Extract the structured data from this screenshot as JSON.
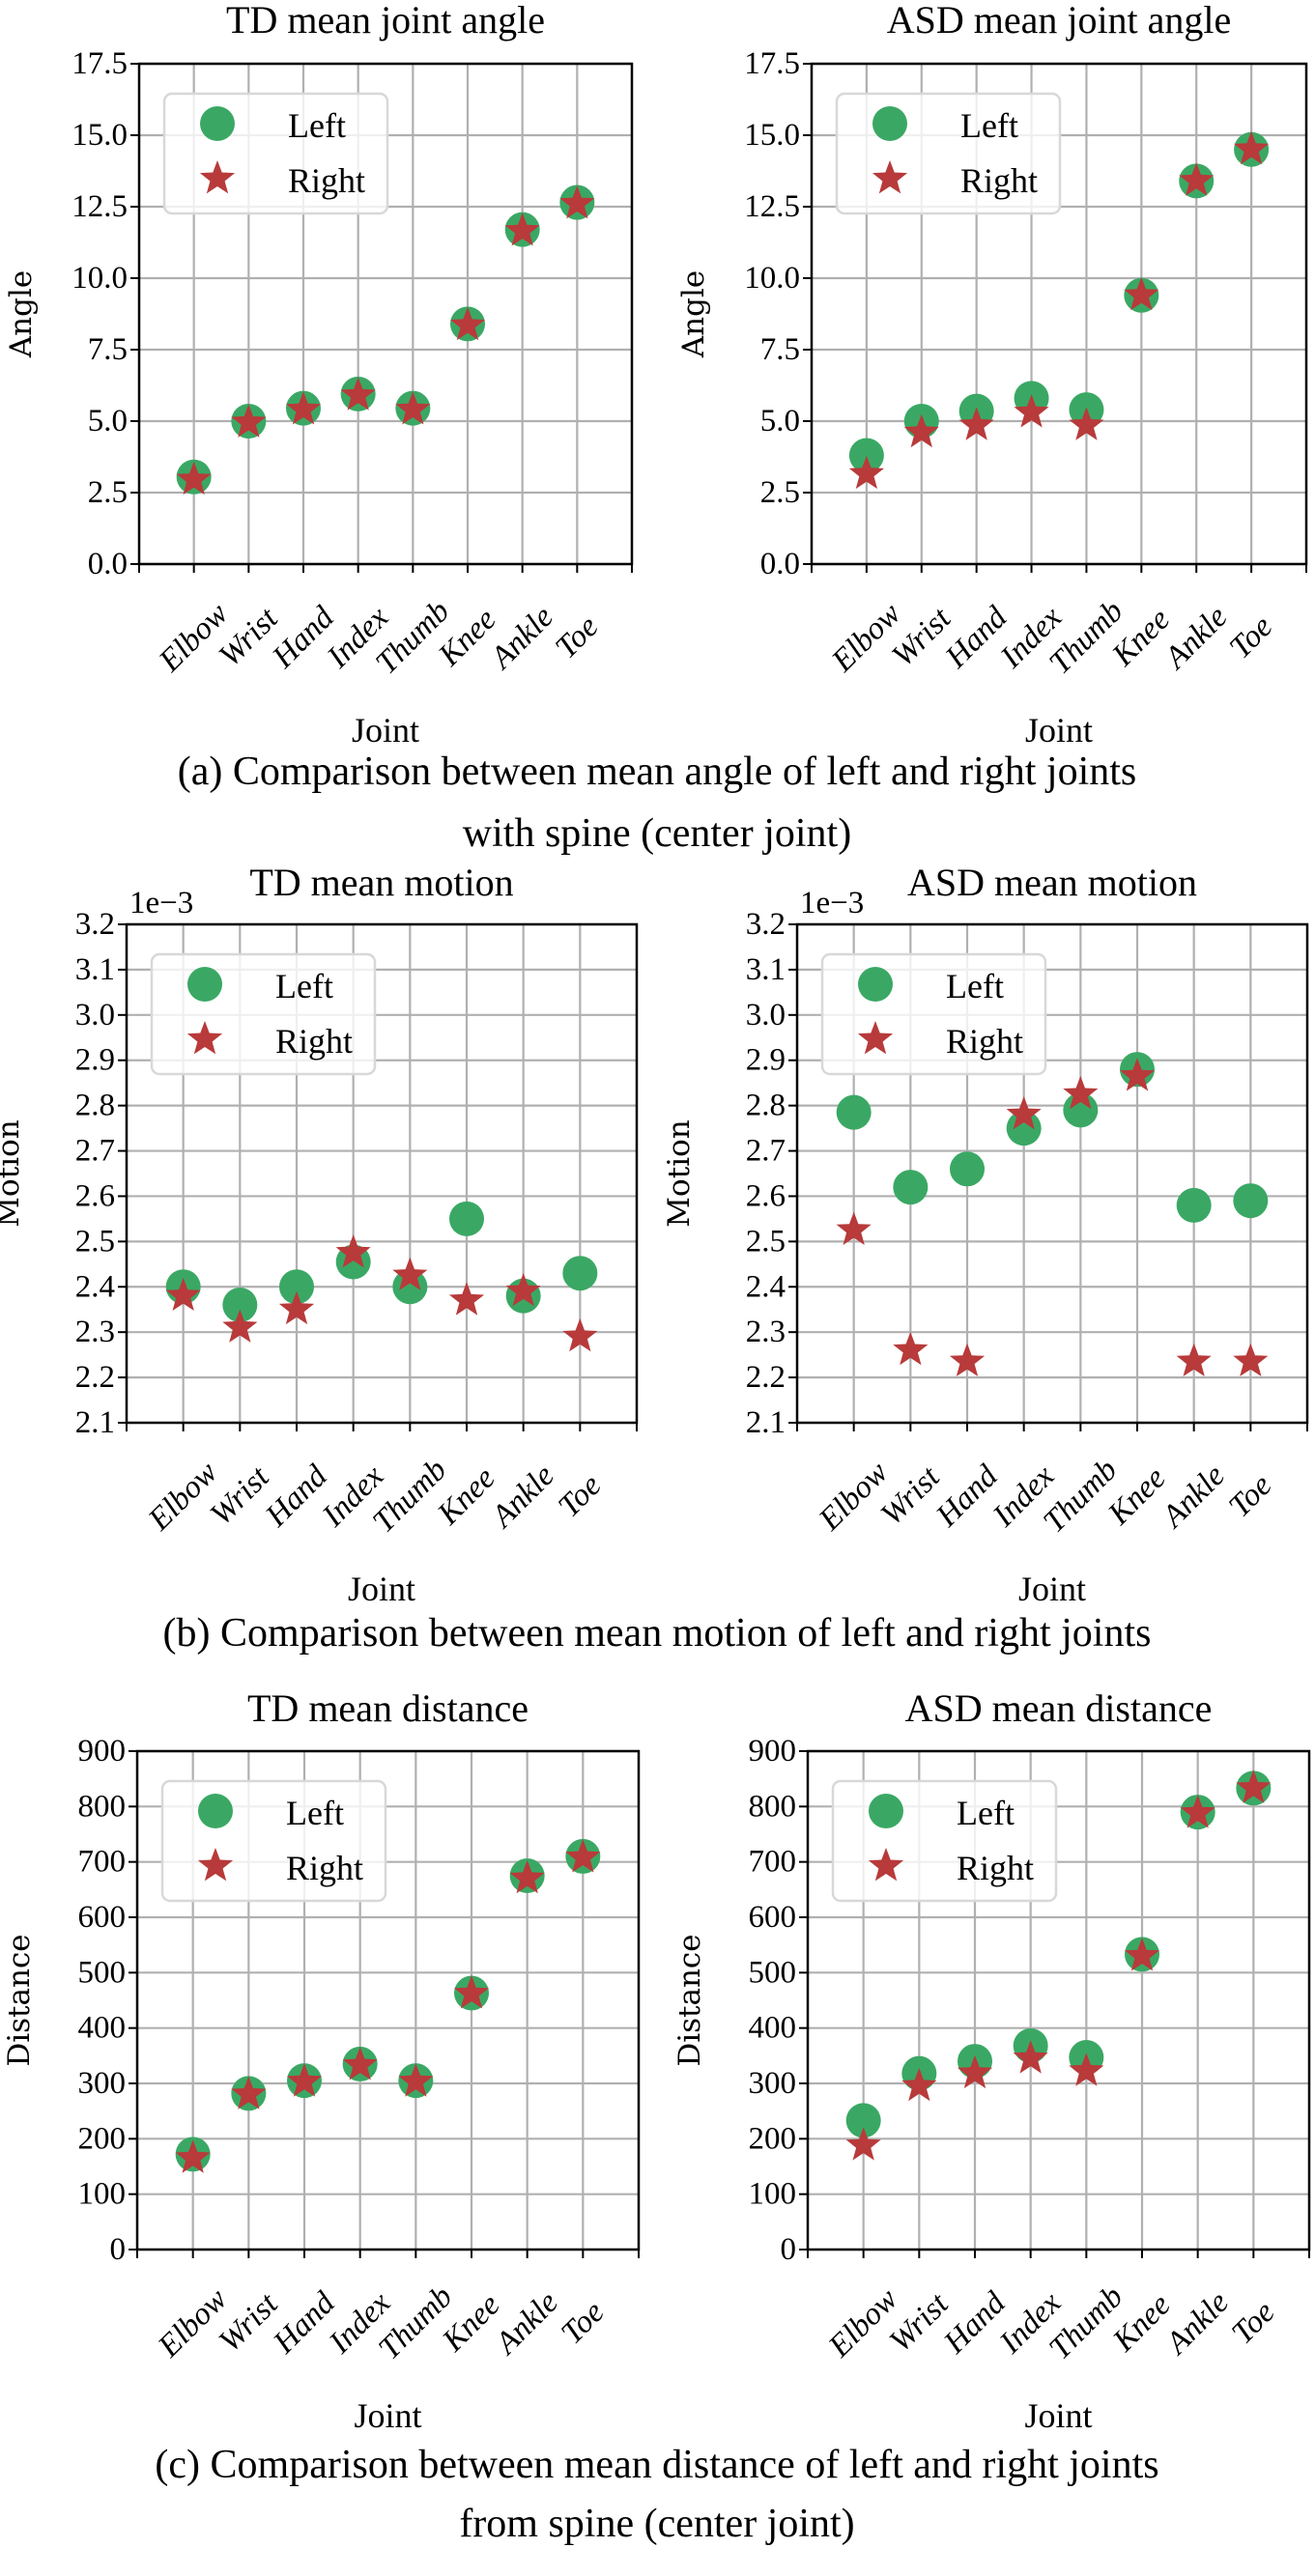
{
  "colors": {
    "left": "#3aa864",
    "right": "#b83a3a",
    "grid": "#b0b0b0",
    "legend_border": "#d8d8d8"
  },
  "legend": {
    "left": "Left",
    "right": "Right",
    "placement": "top-left"
  },
  "captions": [
    [
      "(a) Comparison between mean angle of left and right joints",
      "with spine (center joint)"
    ],
    [
      "(b) Comparison between mean motion of left and right joints"
    ],
    [
      "(c) Comparison between mean distance of left and right joints",
      "from spine (center joint)"
    ]
  ],
  "chart_data": [
    {
      "type": "scatter",
      "title": "TD mean joint angle",
      "xlabel": "Joint",
      "ylabel": "Angle",
      "grid": true,
      "categories": [
        "Elbow",
        "Wrist",
        "Hand",
        "Index",
        "Thumb",
        "Knee",
        "Ankle",
        "Toe"
      ],
      "ylim": [
        0,
        17.5
      ],
      "yticks": [
        "0.0",
        "2.5",
        "5.0",
        "7.5",
        "10.0",
        "12.5",
        "15.0",
        "17.5"
      ],
      "series": [
        {
          "name": "Left",
          "marker": "circle",
          "values": [
            3.05,
            5.0,
            5.45,
            5.95,
            5.45,
            8.4,
            11.7,
            12.65
          ]
        },
        {
          "name": "Right",
          "marker": "star",
          "values": [
            2.95,
            4.95,
            5.4,
            5.9,
            5.4,
            8.35,
            11.65,
            12.6
          ]
        }
      ]
    },
    {
      "type": "scatter",
      "title": "ASD mean joint angle",
      "xlabel": "Joint",
      "ylabel": "Angle",
      "grid": true,
      "categories": [
        "Elbow",
        "Wrist",
        "Hand",
        "Index",
        "Thumb",
        "Knee",
        "Ankle",
        "Toe"
      ],
      "ylim": [
        0,
        17.5
      ],
      "yticks": [
        "0.0",
        "2.5",
        "5.0",
        "7.5",
        "10.0",
        "12.5",
        "15.0",
        "17.5"
      ],
      "series": [
        {
          "name": "Left",
          "marker": "circle",
          "values": [
            3.8,
            5.0,
            5.35,
            5.8,
            5.4,
            9.4,
            13.4,
            14.5
          ]
        },
        {
          "name": "Right",
          "marker": "star",
          "values": [
            3.15,
            4.6,
            4.85,
            5.3,
            4.85,
            9.4,
            13.4,
            14.5
          ]
        }
      ]
    },
    {
      "type": "scatter",
      "title": "TD mean motion",
      "xlabel": "Joint",
      "ylabel": "Motion",
      "grid": true,
      "offset_text": "1e−3",
      "categories": [
        "Elbow",
        "Wrist",
        "Hand",
        "Index",
        "Thumb",
        "Knee",
        "Ankle",
        "Toe"
      ],
      "ylim": [
        2.1,
        3.2
      ],
      "yticks": [
        "2.1",
        "2.2",
        "2.3",
        "2.4",
        "2.5",
        "2.6",
        "2.7",
        "2.8",
        "2.9",
        "3.0",
        "3.1",
        "3.2"
      ],
      "series": [
        {
          "name": "Left",
          "marker": "circle",
          "values": [
            2.4,
            2.36,
            2.4,
            2.455,
            2.4,
            2.55,
            2.38,
            2.43
          ]
        },
        {
          "name": "Right",
          "marker": "star",
          "values": [
            2.38,
            2.31,
            2.35,
            2.475,
            2.425,
            2.37,
            2.39,
            2.29
          ]
        }
      ]
    },
    {
      "type": "scatter",
      "title": "ASD mean motion",
      "xlabel": "Joint",
      "ylabel": "Motion",
      "grid": true,
      "offset_text": "1e−3",
      "categories": [
        "Elbow",
        "Wrist",
        "Hand",
        "Index",
        "Thumb",
        "Knee",
        "Ankle",
        "Toe"
      ],
      "ylim": [
        2.1,
        3.2
      ],
      "yticks": [
        "2.1",
        "2.2",
        "2.3",
        "2.4",
        "2.5",
        "2.6",
        "2.7",
        "2.8",
        "2.9",
        "3.0",
        "3.1",
        "3.2"
      ],
      "series": [
        {
          "name": "Left",
          "marker": "circle",
          "values": [
            2.785,
            2.62,
            2.66,
            2.75,
            2.79,
            2.88,
            2.58,
            2.59
          ]
        },
        {
          "name": "Right",
          "marker": "star",
          "values": [
            2.525,
            2.26,
            2.235,
            2.78,
            2.825,
            2.865,
            2.235,
            2.235
          ]
        }
      ]
    },
    {
      "type": "scatter",
      "title": "TD mean distance",
      "xlabel": "Joint",
      "ylabel": "Distance",
      "grid": true,
      "categories": [
        "Elbow",
        "Wrist",
        "Hand",
        "Index",
        "Thumb",
        "Knee",
        "Ankle",
        "Toe"
      ],
      "ylim": [
        0,
        900
      ],
      "yticks": [
        "0",
        "100",
        "200",
        "300",
        "400",
        "500",
        "600",
        "700",
        "800",
        "900"
      ],
      "series": [
        {
          "name": "Left",
          "marker": "circle",
          "values": [
            172,
            282,
            305,
            335,
            305,
            463,
            675,
            710
          ]
        },
        {
          "name": "Right",
          "marker": "star",
          "values": [
            165,
            280,
            303,
            333,
            303,
            462,
            670,
            708
          ]
        }
      ]
    },
    {
      "type": "scatter",
      "title": "ASD mean distance",
      "xlabel": "Joint",
      "ylabel": "Distance",
      "grid": true,
      "categories": [
        "Elbow",
        "Wrist",
        "Hand",
        "Index",
        "Thumb",
        "Knee",
        "Ankle",
        "Toe"
      ],
      "ylim": [
        0,
        900
      ],
      "yticks": [
        "0",
        "100",
        "200",
        "300",
        "400",
        "500",
        "600",
        "700",
        "800",
        "900"
      ],
      "series": [
        {
          "name": "Left",
          "marker": "circle",
          "values": [
            233,
            318,
            340,
            368,
            347,
            533,
            790,
            833
          ]
        },
        {
          "name": "Right",
          "marker": "star",
          "values": [
            188,
            295,
            318,
            345,
            322,
            530,
            788,
            833
          ]
        }
      ]
    }
  ]
}
